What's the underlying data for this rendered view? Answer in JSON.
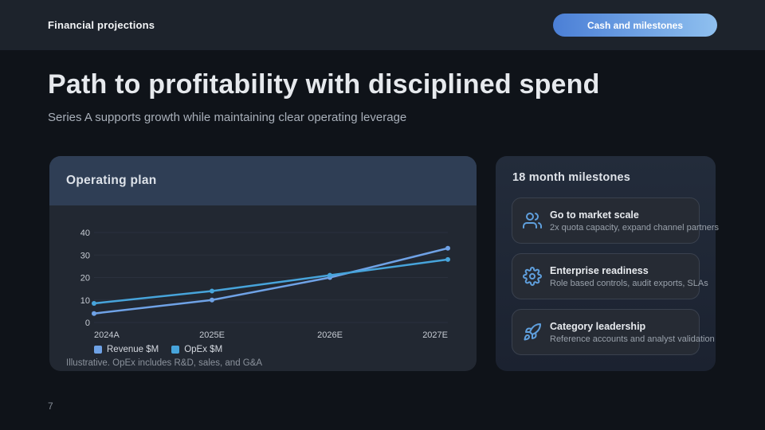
{
  "topbar": {
    "title": "Financial projections",
    "pill_label": "Cash and milestones"
  },
  "header": {
    "title": "Path to profitability with disciplined spend",
    "subtitle": "Series A supports growth while maintaining clear operating leverage"
  },
  "operating_plan": {
    "title": "Operating plan",
    "footnote": "Illustrative. OpEx includes R&D, sales, and G&A"
  },
  "chart_data": {
    "type": "line",
    "title": "Operating plan",
    "categories": [
      "2024A",
      "2025E",
      "2026E",
      "2027E"
    ],
    "series": [
      {
        "name": "Revenue $M",
        "values": [
          4,
          10,
          20,
          33
        ],
        "color": "#6FA2E6"
      },
      {
        "name": "OpEx $M",
        "values": [
          8.5,
          14,
          21,
          28
        ],
        "color": "#47A4DB"
      }
    ],
    "xlabel": "",
    "ylabel": "",
    "ylim": [
      0,
      40
    ],
    "yticks": [
      0,
      10,
      20,
      30,
      40
    ],
    "grid": true,
    "legend_position": "bottom-left",
    "footnote": "Illustrative. OpEx includes R&D, sales, and G&A"
  },
  "milestones": {
    "title": "18 month milestones",
    "items": [
      {
        "icon": "users-icon",
        "title": "Go to market scale",
        "desc": "2x quota capacity, expand channel partners"
      },
      {
        "icon": "gear-icon",
        "title": "Enterprise readiness",
        "desc": "Role based controls, audit exports, SLAs"
      },
      {
        "icon": "rocket-icon",
        "title": "Category leadership",
        "desc": "Reference accounts and analyst validation"
      }
    ]
  },
  "footer": {
    "page_number": "7"
  },
  "colors": {
    "background": "#0f1319",
    "topbar_background": "#1d232c",
    "card_body": "#222832",
    "card_header": "#2f3e55",
    "milestones_card_top": "#232c3b",
    "milestones_card_bottom": "#1b2230",
    "tile_background": "#262b34",
    "accent_revenue": "#6FA2E6",
    "accent_opex": "#47A4DB",
    "icon_blue": "#5F9FDD",
    "pill_gradient_start": "#4B7FD6",
    "pill_gradient_end": "#8FC0EF"
  }
}
